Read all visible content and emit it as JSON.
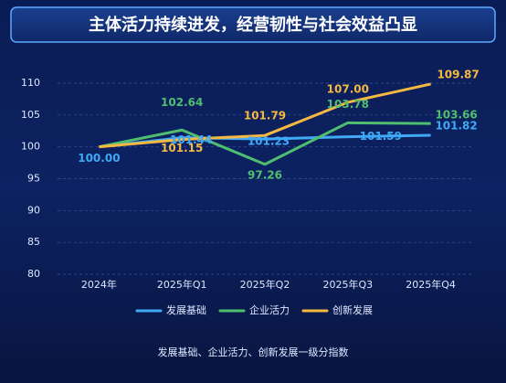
{
  "chart_data": {
    "type": "line",
    "title": "主体活力持续进发，经营韧性与社会效益凸显",
    "caption": "发展基础、企业活力、创新发展一级分指数",
    "categories": [
      "2024年",
      "2025年Q1",
      "2025年Q2",
      "2025年Q3",
      "2025年Q4"
    ],
    "series": [
      {
        "name": "发展基础",
        "color": "#3fa9f5",
        "values": [
          100,
          101.44,
          101.23,
          101.59,
          101.82
        ],
        "value_labels": [
          "100.00",
          "101.44",
          "101.23",
          "101.59",
          "101.82"
        ]
      },
      {
        "name": "企业活力",
        "color": "#4fbf6f",
        "values": [
          100,
          102.64,
          97.26,
          103.78,
          103.66
        ],
        "value_labels": [
          null,
          "102.64",
          "97.26",
          "103.78",
          "103.66"
        ]
      },
      {
        "name": "创新发展",
        "color": "#f5b942",
        "values": [
          100,
          101.15,
          101.79,
          107,
          109.87
        ],
        "value_labels": [
          null,
          "101.15",
          "101.79",
          "107.00",
          "109.87"
        ]
      }
    ],
    "ylim": [
      80,
      110
    ],
    "yticks": [
      80,
      85,
      90,
      95,
      100,
      105,
      110
    ],
    "grid": true,
    "legend": "bottom"
  }
}
